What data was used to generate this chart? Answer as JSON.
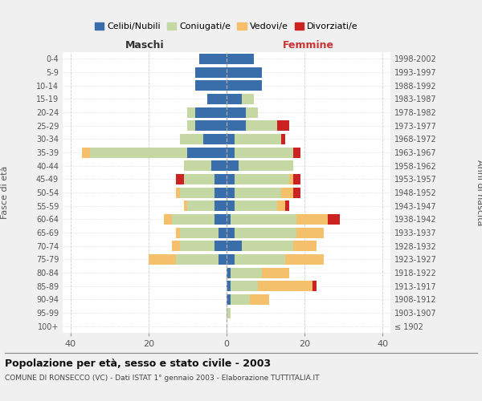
{
  "age_groups": [
    "100+",
    "95-99",
    "90-94",
    "85-89",
    "80-84",
    "75-79",
    "70-74",
    "65-69",
    "60-64",
    "55-59",
    "50-54",
    "45-49",
    "40-44",
    "35-39",
    "30-34",
    "25-29",
    "20-24",
    "15-19",
    "10-14",
    "5-9",
    "0-4"
  ],
  "birth_years": [
    "≤ 1902",
    "1903-1907",
    "1908-1912",
    "1913-1917",
    "1918-1922",
    "1923-1927",
    "1928-1932",
    "1933-1937",
    "1938-1942",
    "1943-1947",
    "1948-1952",
    "1953-1957",
    "1958-1962",
    "1963-1967",
    "1968-1972",
    "1973-1977",
    "1978-1982",
    "1983-1987",
    "1988-1992",
    "1993-1997",
    "1998-2002"
  ],
  "colors": {
    "celibi": "#3a6eaa",
    "coniugati": "#c5d8a4",
    "vedovi": "#f5c06b",
    "divorziati": "#cc2222"
  },
  "maschi": {
    "celibi": [
      0,
      0,
      0,
      0,
      0,
      2,
      3,
      2,
      3,
      3,
      3,
      3,
      4,
      10,
      6,
      8,
      8,
      5,
      8,
      8,
      7
    ],
    "coniugati": [
      0,
      0,
      0,
      0,
      0,
      11,
      9,
      10,
      11,
      7,
      9,
      8,
      7,
      25,
      6,
      2,
      2,
      0,
      0,
      0,
      0
    ],
    "vedovi": [
      0,
      0,
      0,
      0,
      0,
      7,
      2,
      1,
      2,
      1,
      1,
      0,
      0,
      2,
      0,
      0,
      0,
      0,
      0,
      0,
      0
    ],
    "divorziati": [
      0,
      0,
      0,
      0,
      0,
      0,
      0,
      0,
      0,
      0,
      0,
      2,
      0,
      0,
      0,
      0,
      0,
      0,
      0,
      0,
      0
    ]
  },
  "femmine": {
    "celibi": [
      0,
      0,
      1,
      1,
      1,
      2,
      4,
      2,
      1,
      2,
      2,
      2,
      3,
      2,
      2,
      5,
      5,
      4,
      9,
      9,
      7
    ],
    "coniugati": [
      0,
      1,
      5,
      7,
      8,
      13,
      13,
      16,
      17,
      11,
      12,
      14,
      14,
      15,
      12,
      8,
      3,
      3,
      0,
      0,
      0
    ],
    "vedovi": [
      0,
      0,
      5,
      14,
      7,
      10,
      6,
      7,
      8,
      2,
      3,
      1,
      0,
      0,
      0,
      0,
      0,
      0,
      0,
      0,
      0
    ],
    "divorziati": [
      0,
      0,
      0,
      1,
      0,
      0,
      0,
      0,
      3,
      1,
      2,
      2,
      0,
      2,
      1,
      3,
      0,
      0,
      0,
      0,
      0
    ]
  },
  "xlim": 42,
  "title": "Popolazione per età, sesso e stato civile - 2003",
  "subtitle": "COMUNE DI RONSECCO (VC) - Dati ISTAT 1° gennaio 2003 - Elaborazione TUTTITALIA.IT",
  "xlabel_left": "Maschi",
  "xlabel_right": "Femmine",
  "ylabel_left": "Fasce di età",
  "ylabel_right": "Anni di nascita",
  "legend_labels": [
    "Celibi/Nubili",
    "Coniugati/e",
    "Vedovi/e",
    "Divorziati/e"
  ],
  "bg_color": "#f0f0f0",
  "plot_bg": "#ffffff",
  "grid_color": "#cccccc"
}
